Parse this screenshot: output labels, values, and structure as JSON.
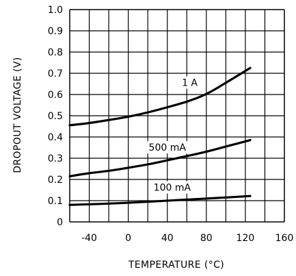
{
  "chart_data": {
    "type": "line",
    "title": "",
    "xlabel": "TEMPERATURE (°C)",
    "ylabel": "DROPOUT VOLTAGE (V)",
    "xlim": [
      -60,
      160
    ],
    "ylim": [
      0,
      1.0
    ],
    "x_ticks": [
      "-40",
      "0",
      "40",
      "80",
      "120",
      "160"
    ],
    "y_ticks": [
      "0",
      "0.1",
      "0.2",
      "0.3",
      "0.4",
      "0.5",
      "0.6",
      "0.7",
      "0.8",
      "0.9",
      "1.0"
    ],
    "grid": true,
    "series": [
      {
        "name": "1 A",
        "x": [
          -60,
          -40,
          -20,
          0,
          20,
          40,
          60,
          80,
          100,
          125
        ],
        "y": [
          0.455,
          0.465,
          0.48,
          0.495,
          0.515,
          0.54,
          0.565,
          0.6,
          0.655,
          0.725
        ],
        "color": "#000000"
      },
      {
        "name": "500 mA",
        "x": [
          -60,
          -40,
          -20,
          0,
          20,
          40,
          60,
          80,
          100,
          125
        ],
        "y": [
          0.215,
          0.23,
          0.24,
          0.255,
          0.27,
          0.29,
          0.31,
          0.33,
          0.355,
          0.385
        ],
        "color": "#000000"
      },
      {
        "name": "100 mA",
        "x": [
          -60,
          -40,
          -20,
          0,
          20,
          40,
          60,
          80,
          100,
          125
        ],
        "y": [
          0.08,
          0.083,
          0.086,
          0.09,
          0.095,
          0.1,
          0.105,
          0.11,
          0.115,
          0.122
        ],
        "color": "#000000"
      }
    ]
  }
}
